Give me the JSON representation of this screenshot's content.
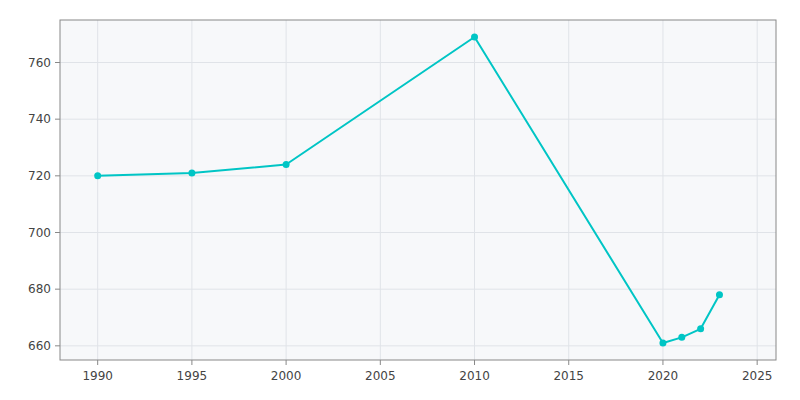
{
  "chart_data": {
    "type": "line",
    "x": [
      1990,
      1995,
      2000,
      2010,
      2020,
      2021,
      2022,
      2023
    ],
    "values": [
      720,
      721,
      724,
      769,
      661,
      663,
      666,
      678
    ],
    "color": "#00C5C5",
    "marker": "circle",
    "xlim": [
      1988,
      2026
    ],
    "ylim": [
      655,
      775
    ],
    "xticks": [
      1990,
      1995,
      2000,
      2005,
      2010,
      2015,
      2020,
      2025
    ],
    "yticks": [
      660,
      680,
      700,
      720,
      740,
      760
    ],
    "grid": true
  }
}
